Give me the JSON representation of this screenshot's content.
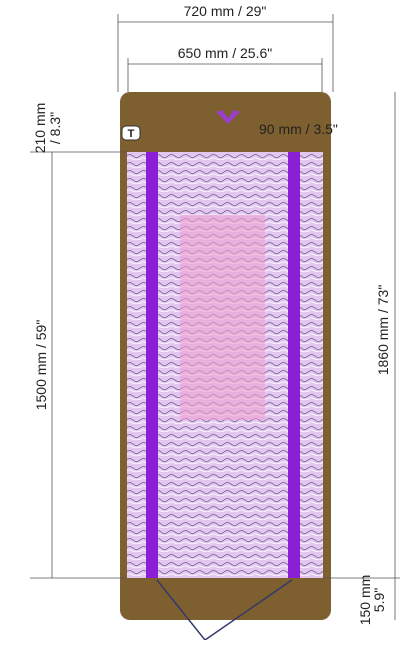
{
  "dimensions": {
    "outer_width": "720 mm / 29\"",
    "inner_width": "650 mm / 25.6\"",
    "top_border": [
      "210 mm",
      "/ 8.3\""
    ],
    "strip_width": "90 mm / 3.5\"",
    "pad_length": "1500 mm / 59\"",
    "total_length": "1860 mm / 73\"",
    "bottom_border": [
      "150 mm",
      "5.9\""
    ]
  },
  "logo": "T"
}
